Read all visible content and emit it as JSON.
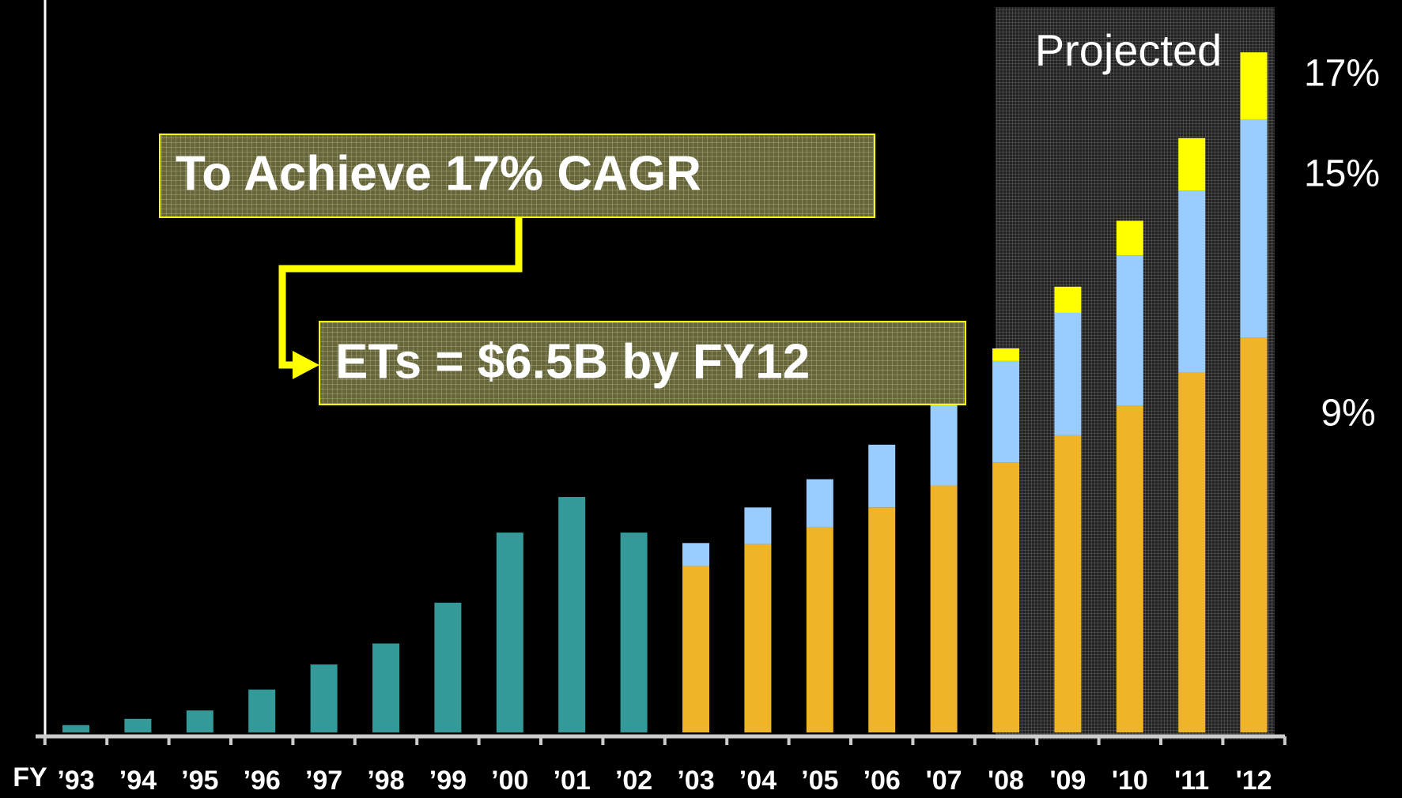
{
  "chart_data": {
    "type": "stacked_bar",
    "x_label": "FY",
    "categories": [
      "’93",
      "’94",
      "’95",
      "’96",
      "’97",
      "’98",
      "’99",
      "’00",
      "’01",
      "’02",
      "’03",
      "’04",
      "’05",
      "’06",
      "'07",
      "'08",
      "'09",
      "'10",
      "'11",
      "'12"
    ],
    "series": [
      {
        "color": "#339999",
        "values": [
          0.07,
          0.13,
          0.21,
          0.41,
          0.65,
          0.85,
          1.24,
          1.91,
          2.25,
          1.91,
          null,
          null,
          null,
          null,
          null,
          null,
          null,
          null,
          null,
          null
        ]
      },
      {
        "color": "#f0b429",
        "values": [
          null,
          null,
          null,
          null,
          null,
          null,
          null,
          null,
          null,
          null,
          1.59,
          1.8,
          1.96,
          2.15,
          2.36,
          2.58,
          2.84,
          3.12,
          3.44,
          3.77
        ]
      },
      {
        "color": "#99ccff",
        "values": [
          null,
          null,
          null,
          null,
          null,
          null,
          null,
          null,
          null,
          null,
          0.22,
          0.35,
          0.46,
          0.6,
          0.84,
          0.97,
          1.17,
          1.44,
          1.74,
          2.09
        ]
      },
      {
        "color": "#ffff00",
        "values": [
          null,
          null,
          null,
          null,
          null,
          null,
          null,
          null,
          null,
          null,
          null,
          null,
          null,
          null,
          null,
          0.12,
          0.25,
          0.33,
          0.5,
          0.64
        ]
      }
    ],
    "ylim": [
      0,
      7
    ],
    "annotations": [
      "Projected",
      "To Achieve 17% CAGR",
      "ETs = $6.5B by FY12",
      "17%",
      "15%",
      "9%"
    ]
  }
}
